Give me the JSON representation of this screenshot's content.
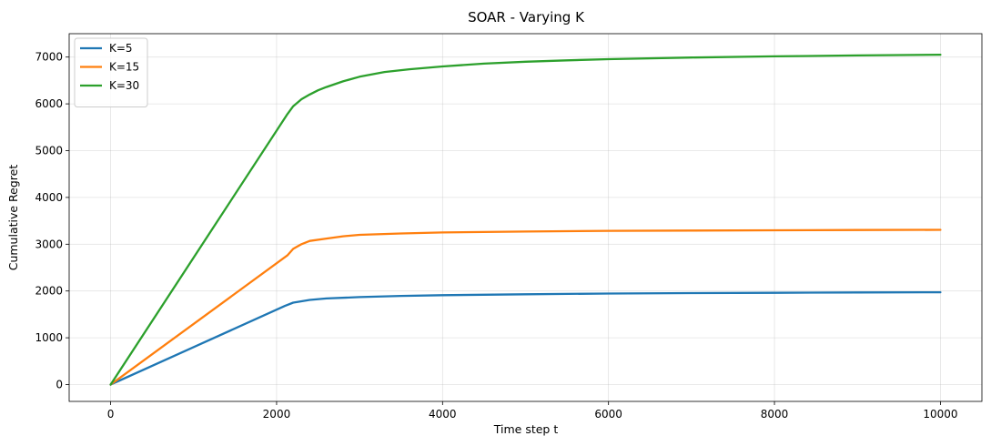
{
  "chart_data": {
    "type": "line",
    "title": "SOAR - Varying K",
    "xlabel": "Time step t",
    "ylabel": "Cumulative Regret",
    "xlim": [
      -500,
      10500
    ],
    "ylim": [
      -360,
      7500
    ],
    "xticks": [
      0,
      2000,
      4000,
      6000,
      8000,
      10000
    ],
    "yticks": [
      0,
      1000,
      2000,
      3000,
      4000,
      5000,
      6000,
      7000
    ],
    "grid": true,
    "legend_position": "top-left",
    "series": [
      {
        "name": "K=5",
        "color": "#1f77b4",
        "points": [
          [
            0,
            0
          ],
          [
            2100,
            1680
          ],
          [
            2200,
            1750
          ],
          [
            2400,
            1810
          ],
          [
            2600,
            1840
          ],
          [
            3000,
            1870
          ],
          [
            3500,
            1895
          ],
          [
            4000,
            1910
          ],
          [
            5000,
            1930
          ],
          [
            6000,
            1945
          ],
          [
            7000,
            1955
          ],
          [
            8000,
            1962
          ],
          [
            9000,
            1968
          ],
          [
            10000,
            1972
          ]
        ]
      },
      {
        "name": "K=15",
        "color": "#ff7f0e",
        "points": [
          [
            0,
            0
          ],
          [
            2130,
            2760
          ],
          [
            2200,
            2900
          ],
          [
            2300,
            3000
          ],
          [
            2400,
            3070
          ],
          [
            2600,
            3120
          ],
          [
            2800,
            3170
          ],
          [
            3000,
            3200
          ],
          [
            3500,
            3230
          ],
          [
            4000,
            3250
          ],
          [
            5000,
            3270
          ],
          [
            6000,
            3285
          ],
          [
            7000,
            3292
          ],
          [
            8000,
            3298
          ],
          [
            9000,
            3303
          ],
          [
            10000,
            3308
          ]
        ]
      },
      {
        "name": "K=30",
        "color": "#2ca02c",
        "points": [
          [
            0,
            0
          ],
          [
            2130,
            5780
          ],
          [
            2200,
            5950
          ],
          [
            2300,
            6100
          ],
          [
            2400,
            6200
          ],
          [
            2500,
            6290
          ],
          [
            2600,
            6360
          ],
          [
            2800,
            6480
          ],
          [
            3000,
            6580
          ],
          [
            3300,
            6680
          ],
          [
            3600,
            6740
          ],
          [
            4000,
            6800
          ],
          [
            4500,
            6860
          ],
          [
            5000,
            6900
          ],
          [
            5500,
            6930
          ],
          [
            6000,
            6955
          ],
          [
            7000,
            6990
          ],
          [
            8000,
            7015
          ],
          [
            9000,
            7035
          ],
          [
            10000,
            7050
          ]
        ]
      }
    ]
  }
}
